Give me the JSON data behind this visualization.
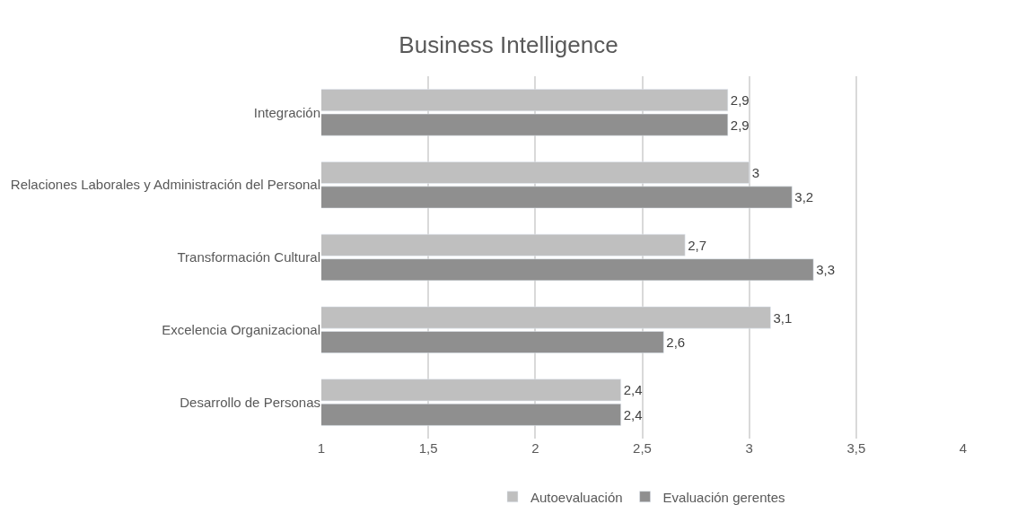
{
  "chart_data": {
    "type": "bar",
    "orientation": "horizontal",
    "title": "Business Intelligence",
    "categories": [
      "Integración",
      "Relaciones Laborales y Administración del Personal",
      "Transformación Cultural",
      "Excelencia Organizacional",
      "Desarrollo de Personas"
    ],
    "series": [
      {
        "name": "Autoevaluación",
        "color": "#bfbfbf",
        "values": [
          2.9,
          3.0,
          2.7,
          3.1,
          2.4
        ],
        "value_labels": [
          "2,9",
          "3",
          "2,7",
          "3,1",
          "2,4"
        ]
      },
      {
        "name": "Evaluación gerentes",
        "color": "#8f8f8f",
        "values": [
          2.9,
          3.2,
          3.3,
          2.6,
          2.4
        ],
        "value_labels": [
          "2,9",
          "3,2",
          "3,3",
          "2,6",
          "2,4"
        ]
      }
    ],
    "xlim": [
      1,
      4
    ],
    "xticks": [
      1,
      {
        "value": 1.5,
        "label": "1,5"
      },
      2,
      {
        "value": 2.5,
        "label": "2,5"
      },
      3,
      {
        "value": 3.5,
        "label": "3,5"
      },
      4
    ],
    "grid": "x",
    "legend": "bottom"
  }
}
